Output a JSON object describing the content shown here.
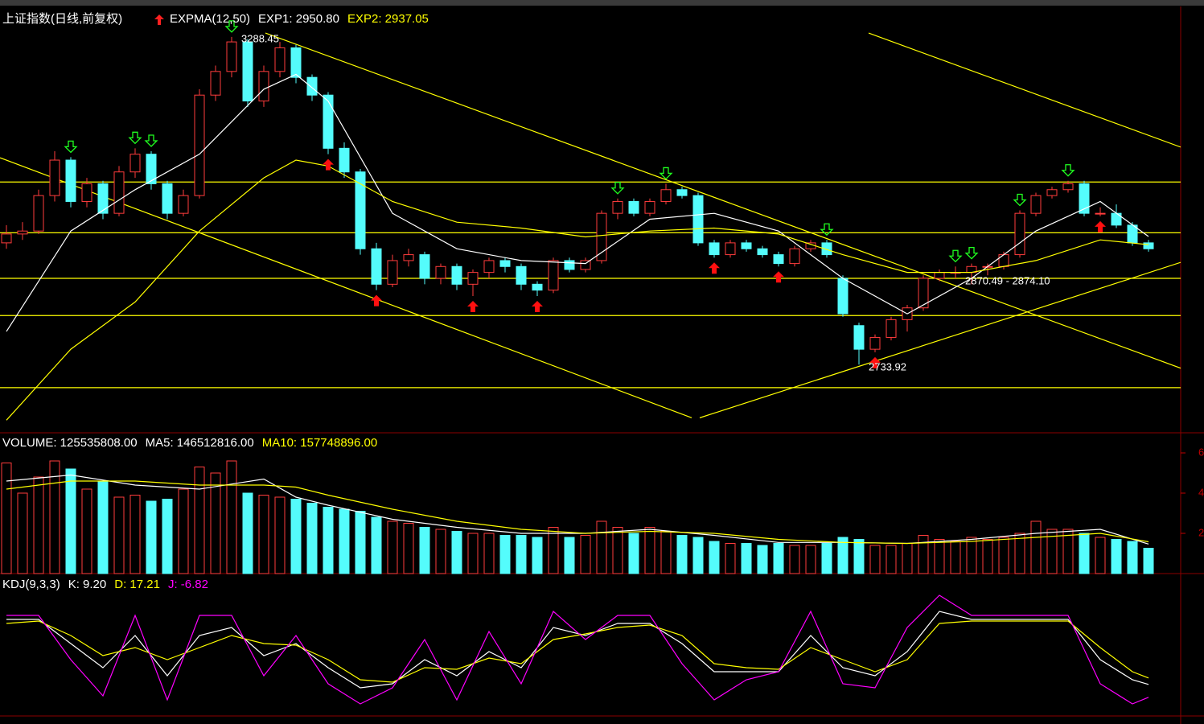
{
  "chart_data": [
    {
      "type": "candlestick",
      "title": "上证指数(日线,前复权)",
      "indicator": "EXPMA(12,50)",
      "up_color": "#ff3c3c",
      "down_color": "#54fcfc",
      "ylim": [
        2620,
        3340
      ],
      "values": [
        [
          2940,
          2970,
          2930,
          2955
        ],
        [
          2955,
          2975,
          2945,
          2960
        ],
        [
          2960,
          3030,
          2955,
          3020
        ],
        [
          3020,
          3095,
          3010,
          3080
        ],
        [
          3080,
          3085,
          3000,
          3010
        ],
        [
          3010,
          3050,
          3000,
          3040
        ],
        [
          3040,
          3045,
          2980,
          2990
        ],
        [
          2990,
          3070,
          2985,
          3060
        ],
        [
          3060,
          3100,
          3050,
          3090
        ],
        [
          3090,
          3095,
          3030,
          3040
        ],
        [
          3040,
          3045,
          2980,
          2990
        ],
        [
          2990,
          3030,
          2985,
          3020
        ],
        [
          3020,
          3200,
          3015,
          3190
        ],
        [
          3190,
          3240,
          3180,
          3230
        ],
        [
          3230,
          3288.45,
          3220,
          3280
        ],
        [
          3280,
          3285,
          3170,
          3180
        ],
        [
          3180,
          3240,
          3170,
          3230
        ],
        [
          3230,
          3280,
          3220,
          3270
        ],
        [
          3270,
          3275,
          3210,
          3220
        ],
        [
          3220,
          3225,
          3180,
          3190
        ],
        [
          3190,
          3195,
          3090,
          3100
        ],
        [
          3100,
          3110,
          3050,
          3060
        ],
        [
          3060,
          3065,
          2920,
          2930
        ],
        [
          2930,
          2940,
          2860,
          2870
        ],
        [
          2870,
          2920,
          2865,
          2910
        ],
        [
          2910,
          2930,
          2900,
          2920
        ],
        [
          2920,
          2925,
          2870,
          2880
        ],
        [
          2880,
          2905,
          2870,
          2900
        ],
        [
          2900,
          2905,
          2860,
          2870
        ],
        [
          2870,
          2895,
          2850,
          2890
        ],
        [
          2890,
          2915,
          2880,
          2910
        ],
        [
          2910,
          2915,
          2890,
          2900
        ],
        [
          2900,
          2905,
          2860,
          2870
        ],
        [
          2870,
          2875,
          2850,
          2860
        ],
        [
          2860,
          2915,
          2855,
          2910
        ],
        [
          2910,
          2915,
          2890,
          2895
        ],
        [
          2895,
          2915,
          2890,
          2910
        ],
        [
          2910,
          2995,
          2905,
          2990
        ],
        [
          2990,
          3015,
          2980,
          3010
        ],
        [
          3010,
          3015,
          2985,
          2990
        ],
        [
          2990,
          3015,
          2985,
          3010
        ],
        [
          3010,
          3040,
          3005,
          3030
        ],
        [
          3030,
          3035,
          3015,
          3020
        ],
        [
          3020,
          3025,
          2935,
          2940
        ],
        [
          2940,
          2945,
          2915,
          2920
        ],
        [
          2920,
          2945,
          2915,
          2940
        ],
        [
          2940,
          2945,
          2925,
          2930
        ],
        [
          2930,
          2935,
          2915,
          2920
        ],
        [
          2920,
          2925,
          2900,
          2905
        ],
        [
          2905,
          2935,
          2900,
          2930
        ],
        [
          2930,
          2945,
          2925,
          2940
        ],
        [
          2940,
          2945,
          2915,
          2920
        ],
        [
          2880,
          2885,
          2815,
          2820
        ],
        [
          2800,
          2805,
          2733.92,
          2760
        ],
        [
          2760,
          2785,
          2755,
          2780
        ],
        [
          2780,
          2815,
          2775,
          2810
        ],
        [
          2810,
          2835,
          2790,
          2830
        ],
        [
          2830,
          2885,
          2825,
          2880
        ],
        [
          2880,
          2895,
          2875,
          2890
        ],
        [
          2890,
          2900,
          2880,
          2890
        ],
        [
          2890,
          2905,
          2870,
          2900
        ],
        [
          2900,
          2905,
          2885,
          2900
        ],
        [
          2900,
          2925,
          2895,
          2920
        ],
        [
          2920,
          2995,
          2915,
          2990
        ],
        [
          2990,
          3025,
          2985,
          3020
        ],
        [
          3020,
          3035,
          3015,
          3030
        ],
        [
          3030,
          3045,
          3025,
          3040
        ],
        [
          3040,
          3045,
          2985,
          2990
        ],
        [
          2990,
          3000,
          2985,
          2990
        ],
        [
          2990,
          3005,
          2965,
          2970
        ],
        [
          2970,
          2975,
          2935,
          2940
        ],
        [
          2940,
          2945,
          2925,
          2930
        ]
      ],
      "series": [
        {
          "name": "EXP1: 2950.80",
          "color": "#ffffff",
          "x": [
            0,
            4,
            8,
            12,
            16,
            18,
            20,
            24,
            28,
            32,
            36,
            40,
            44,
            48,
            52,
            56,
            60,
            64,
            68,
            71
          ],
          "values": [
            2790,
            2960,
            3030,
            3090,
            3200,
            3225,
            3180,
            2990,
            2930,
            2910,
            2905,
            2980,
            2990,
            2960,
            2880,
            2820,
            2880,
            2960,
            3010,
            2950.8
          ]
        },
        {
          "name": "EXP2: 2937.05",
          "color": "#ffff00",
          "x": [
            0,
            4,
            8,
            12,
            16,
            18,
            20,
            24,
            28,
            32,
            36,
            40,
            44,
            48,
            52,
            56,
            60,
            64,
            68,
            71
          ],
          "values": [
            2640,
            2760,
            2840,
            2960,
            3050,
            3080,
            3070,
            3010,
            2975,
            2965,
            2950,
            2960,
            2965,
            2955,
            2920,
            2890,
            2890,
            2910,
            2945,
            2937.05
          ]
        }
      ],
      "levels": [
        3043,
        2957,
        2880,
        2817,
        2695
      ],
      "trendlines": [
        [
          [
            -0.4,
            3084
          ],
          [
            42.6,
            2644
          ]
        ],
        [
          [
            16.1,
            3295
          ],
          [
            73,
            2728
          ]
        ],
        [
          [
            53.6,
            3295
          ],
          [
            73,
            3102
          ]
        ],
        [
          [
            43.1,
            2644
          ],
          [
            73,
            2907
          ]
        ]
      ],
      "line_color": "#ffff00",
      "buy_signals": [
        20,
        23,
        29,
        33,
        44,
        48,
        54,
        68
      ],
      "sell_signals": [
        4,
        8,
        9,
        14,
        38,
        41,
        51,
        59,
        60,
        63,
        66
      ],
      "annotations": [
        {
          "text": "3288.45",
          "at": 14,
          "side": "high"
        },
        {
          "text": "2733.92",
          "at": 53,
          "side": "low"
        },
        {
          "text": "2870.49 - 2874.10",
          "at": 59,
          "side": "low"
        }
      ]
    },
    {
      "type": "volume",
      "title": "VOLUME: 125535808.00",
      "ylim": [
        0,
        6.92
      ],
      "yticks": [
        2,
        4,
        6
      ],
      "values": [
        5.5,
        4.0,
        4.8,
        5.6,
        5.2,
        4.2,
        4.6,
        3.8,
        3.9,
        3.6,
        3.7,
        4.2,
        5.3,
        5.0,
        5.6,
        4.0,
        3.9,
        3.8,
        3.7,
        3.5,
        3.3,
        3.2,
        3.1,
        2.8,
        2.6,
        2.5,
        2.3,
        2.2,
        2.1,
        2.0,
        2.0,
        1.9,
        1.9,
        1.8,
        2.3,
        1.8,
        1.9,
        2.6,
        2.3,
        2.0,
        2.3,
        2.1,
        1.9,
        1.8,
        1.6,
        1.5,
        1.5,
        1.4,
        1.5,
        1.4,
        1.4,
        1.5,
        1.8,
        1.7,
        1.4,
        1.4,
        1.5,
        1.9,
        1.7,
        1.6,
        1.8,
        1.7,
        1.8,
        2.0,
        2.6,
        2.2,
        2.2,
        2.0,
        1.8,
        1.7,
        1.6,
        1.26
      ],
      "series": [
        {
          "name": "MA5: 146512816.00",
          "color": "#ffffff",
          "x": [
            0,
            4,
            8,
            12,
            16,
            18,
            20,
            24,
            28,
            32,
            36,
            40,
            44,
            48,
            52,
            56,
            60,
            64,
            68,
            71
          ],
          "values": [
            4.6,
            4.9,
            4.4,
            4.2,
            4.7,
            3.8,
            3.4,
            2.7,
            2.3,
            2.0,
            2.0,
            2.2,
            1.9,
            1.55,
            1.55,
            1.5,
            1.7,
            2.0,
            2.2,
            1.47
          ]
        },
        {
          "name": "MA10: 157748896.00",
          "color": "#ffff00",
          "x": [
            0,
            4,
            8,
            12,
            16,
            18,
            20,
            24,
            28,
            32,
            36,
            40,
            44,
            48,
            52,
            56,
            60,
            64,
            68,
            71
          ],
          "values": [
            4.2,
            4.6,
            4.6,
            4.4,
            4.4,
            4.3,
            3.9,
            3.2,
            2.6,
            2.2,
            2.0,
            2.1,
            2.0,
            1.7,
            1.55,
            1.5,
            1.6,
            1.8,
            2.0,
            1.58
          ]
        }
      ]
    },
    {
      "type": "line",
      "title": "KDJ(9,3,3)",
      "ylim": [
        -30,
        145
      ],
      "x": [
        0,
        2,
        4,
        6,
        8,
        10,
        12,
        14,
        16,
        18,
        20,
        22,
        24,
        26,
        28,
        30,
        32,
        34,
        36,
        38,
        40,
        42,
        44,
        46,
        48,
        50,
        52,
        54,
        56,
        58,
        60,
        62,
        64,
        66,
        68,
        70,
        71
      ],
      "series": [
        {
          "name": "K: 9.20",
          "color": "#ffffff",
          "values": [
            90,
            90,
            60,
            30,
            70,
            20,
            70,
            80,
            45,
            60,
            30,
            5,
            10,
            40,
            20,
            50,
            30,
            80,
            70,
            85,
            85,
            60,
            25,
            25,
            25,
            70,
            30,
            20,
            50,
            100,
            90,
            90,
            90,
            90,
            40,
            15,
            9.2
          ]
        },
        {
          "name": "D: 17.21",
          "color": "#ffff00",
          "values": [
            85,
            88,
            70,
            45,
            55,
            40,
            55,
            70,
            60,
            58,
            40,
            15,
            12,
            30,
            28,
            42,
            35,
            65,
            72,
            80,
            83,
            70,
            35,
            30,
            28,
            55,
            40,
            25,
            40,
            85,
            88,
            88,
            88,
            88,
            55,
            25,
            17.21
          ]
        },
        {
          "name": "J: -6.82",
          "color": "#ff00ff",
          "values": [
            95,
            95,
            40,
            -5,
            95,
            -10,
            95,
            95,
            20,
            70,
            10,
            -15,
            5,
            65,
            -10,
            75,
            10,
            100,
            65,
            95,
            95,
            35,
            -10,
            15,
            25,
            100,
            10,
            5,
            80,
            120,
            95,
            95,
            95,
            95,
            10,
            -15,
            -6.82
          ]
        }
      ]
    }
  ]
}
